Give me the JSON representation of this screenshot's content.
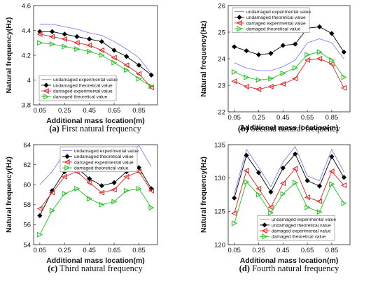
{
  "figure": {
    "chart_data": [
      {
        "type": "line",
        "panel_letter": "(a)",
        "caption": "First natural frequency",
        "xlabel": "Additional mass location(m)",
        "ylabel": "Natural frequency(Hz)",
        "xlim": [
          0.0,
          1.0
        ],
        "ylim": [
          3.8,
          4.6
        ],
        "x_ticks": [
          "0.05",
          "0.25",
          "0.45",
          "0.65",
          "0.85"
        ],
        "y_ticks": [
          "3.8",
          "4",
          "4.2",
          "4.4",
          "4.6"
        ],
        "legend_position": "bottom-left",
        "x": [
          0.05,
          0.15,
          0.25,
          0.35,
          0.45,
          0.55,
          0.65,
          0.75,
          0.85,
          0.95
        ],
        "series": [
          {
            "name": "undamaged experimental value",
            "color": "#8080f0",
            "marker": "none",
            "values": [
              4.45,
              4.45,
              4.43,
              4.41,
              4.38,
              4.36,
              4.31,
              4.25,
              4.18,
              4.05
            ]
          },
          {
            "name": "undamaged theoretical value",
            "color": "#000000",
            "marker": "diamond",
            "values": [
              4.39,
              4.39,
              4.37,
              4.35,
              4.33,
              4.31,
              4.24,
              4.19,
              4.12,
              4.04
            ]
          },
          {
            "name": "damaged experimental value",
            "color": "#e02020",
            "marker": "triangle-left",
            "values": [
              4.37,
              4.35,
              4.33,
              4.3,
              4.28,
              4.24,
              4.18,
              4.12,
              4.05,
              3.94
            ]
          },
          {
            "name": "damaged theoretical value",
            "color": "#20c020",
            "marker": "triangle-right",
            "values": [
              4.3,
              4.29,
              4.27,
              4.25,
              4.23,
              4.2,
              4.14,
              4.08,
              4.01,
              3.95
            ]
          }
        ]
      },
      {
        "type": "line",
        "panel_letter": "(b)",
        "caption": "Second natural frequency",
        "xlabel": "Additional mass location(m)",
        "ylabel": "Natural frequency(Hz)",
        "xlim": [
          0.0,
          1.0
        ],
        "ylim": [
          22,
          26
        ],
        "x_ticks": [
          "0.05",
          "0.25",
          "0.45",
          "0.65",
          "0.85"
        ],
        "y_ticks": [
          "22",
          "23",
          "24",
          "25",
          "26"
        ],
        "legend_position": "top-left",
        "x": [
          0.05,
          0.15,
          0.25,
          0.35,
          0.45,
          0.55,
          0.65,
          0.75,
          0.85,
          0.95
        ],
        "series": [
          {
            "name": "undamaged experimental value",
            "color": "#8080f0",
            "marker": "none",
            "values": [
              23.85,
              23.65,
              23.55,
              23.55,
              23.7,
              23.95,
              24.6,
              24.75,
              24.6,
              24.0
            ]
          },
          {
            "name": "undamaged theoretical value",
            "color": "#000000",
            "marker": "diamond",
            "values": [
              24.45,
              24.3,
              24.15,
              24.2,
              24.5,
              24.55,
              25.15,
              25.2,
              24.95,
              24.25
            ]
          },
          {
            "name": "damaged experimental value",
            "color": "#e02020",
            "marker": "triangle-left",
            "values": [
              23.15,
              22.95,
              22.85,
              22.95,
              23.05,
              23.25,
              23.95,
              24.0,
              23.8,
              22.9
            ]
          },
          {
            "name": "damaged theoretical value",
            "color": "#20c020",
            "marker": "triangle-right",
            "values": [
              23.5,
              23.3,
              23.2,
              23.25,
              23.45,
              23.65,
              24.15,
              24.25,
              23.95,
              23.3
            ]
          }
        ]
      },
      {
        "type": "line",
        "panel_letter": "(c)",
        "caption": "Third natural frequency",
        "xlabel": "Additional mass location(m)",
        "ylabel": "Natural frequency(Hz)",
        "xlim": [
          0.0,
          1.0
        ],
        "ylim": [
          54,
          64
        ],
        "x_ticks": [
          "0.05",
          "0.25",
          "0.45",
          "0.65",
          "0.85"
        ],
        "y_ticks": [
          "54",
          "56",
          "58",
          "60",
          "62",
          "64"
        ],
        "legend_position": "top-center",
        "x": [
          0.05,
          0.15,
          0.25,
          0.35,
          0.45,
          0.55,
          0.65,
          0.75,
          0.85,
          0.95
        ],
        "series": [
          {
            "name": "undamaged experimental value",
            "color": "#8080f0",
            "marker": "none",
            "values": [
              60.0,
              61.3,
              63.2,
              63.8,
              62.7,
              61.6,
              62.0,
              63.2,
              63.9,
              61.8
            ]
          },
          {
            "name": "undamaged theoretical value",
            "color": "#000000",
            "marker": "diamond",
            "values": [
              56.9,
              59.4,
              61.3,
              61.7,
              60.6,
              59.9,
              60.2,
              61.3,
              61.7,
              59.6
            ]
          },
          {
            "name": "damaged experimental value",
            "color": "#e02020",
            "marker": "triangle-left",
            "values": [
              57.6,
              59.2,
              60.8,
              61.3,
              60.2,
              59.2,
              59.5,
              60.8,
              61.3,
              59.4
            ]
          },
          {
            "name": "damaged theoretical value",
            "color": "#20c020",
            "marker": "triangle-right",
            "values": [
              55.0,
              57.4,
              59.1,
              59.6,
              58.6,
              58.0,
              58.3,
              59.4,
              59.6,
              57.7
            ]
          }
        ]
      },
      {
        "type": "line",
        "panel_letter": "(d)",
        "caption": "Fourth natural frequency",
        "xlabel": "Additional mass location(m)",
        "ylabel": "Natural frequency(Hz)",
        "xlim": [
          0.0,
          1.0
        ],
        "ylim": [
          120,
          135
        ],
        "x_ticks": [
          "0.05",
          "0.25",
          "0.45",
          "0.65",
          "0.85"
        ],
        "y_ticks": [
          "120",
          "125",
          "130",
          "135"
        ],
        "legend_position": "bottom-center",
        "x": [
          0.05,
          0.15,
          0.25,
          0.35,
          0.45,
          0.55,
          0.65,
          0.75,
          0.85,
          0.95
        ],
        "series": [
          {
            "name": "undamaged experimental value",
            "color": "#8080f0",
            "marker": "none",
            "values": [
              127.6,
              134.3,
              131.6,
              128.7,
              132.4,
              134.7,
              130.3,
              129.6,
              134.3,
              130.9
            ]
          },
          {
            "name": "undamaged theoretical value",
            "color": "#000000",
            "marker": "diamond",
            "values": [
              127.0,
              133.4,
              130.8,
              127.9,
              131.5,
              133.6,
              129.6,
              128.8,
              133.2,
              130.1
            ]
          },
          {
            "name": "damaged experimental value",
            "color": "#e02020",
            "marker": "triangle-left",
            "values": [
              124.7,
              131.1,
              128.4,
              125.6,
              129.2,
              131.4,
              127.1,
              126.5,
              131.0,
              128.9
            ]
          },
          {
            "name": "damaged theoretical value",
            "color": "#20c020",
            "marker": "triangle-right",
            "values": [
              123.2,
              129.4,
              127.5,
              124.8,
              127.6,
              129.3,
              125.6,
              124.9,
              129.1,
              126.2
            ]
          }
        ]
      }
    ]
  }
}
